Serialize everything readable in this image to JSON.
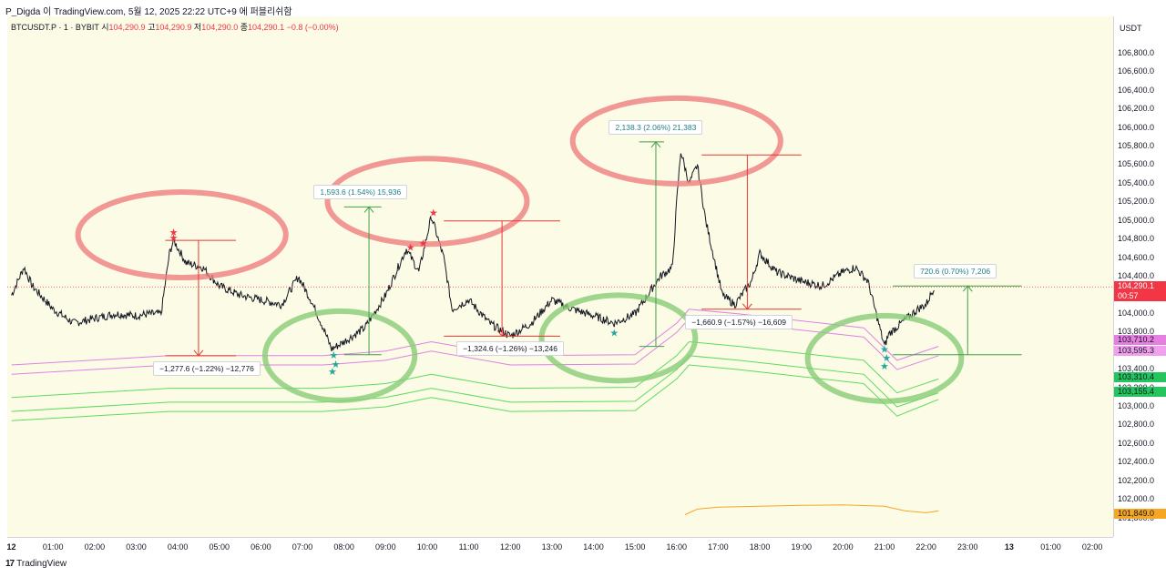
{
  "header": {
    "top_text": "P_Digda 이 TradingView.com, 5월 12, 2025 22:22 UTC+9 에 퍼블리쉬함",
    "symbol": "BTCUSDT.P · 1 · BYBIT",
    "o_label": "시",
    "o_value": "104,290.9",
    "h_label": "고",
    "h_value": "104,290.9",
    "l_label": "저",
    "l_value": "104,290.0",
    "c_label": "종",
    "c_value": "104,290.1",
    "change": "−0.8 (−0.00%)"
  },
  "footer": {
    "logo": "17",
    "brand": "TradingView"
  },
  "colors": {
    "background": "#fbfbe6",
    "candle": "#131722",
    "bull_accent": "#26a69a",
    "band_pink": "#e080e8",
    "band_green": "#5ddc5d",
    "measure_up": "#43a047",
    "measure_down": "#e53935",
    "circle_red": "#f08080",
    "circle_green": "#88cc77",
    "orange": "#f5a623"
  },
  "chart_data": {
    "type": "line",
    "ylim": [
      101600,
      107200
    ],
    "currency": "USDT",
    "y_ticks": [
      "106,800.0",
      "106,600.0",
      "106,400.0",
      "106,200.0",
      "106,000.0",
      "105,800.0",
      "105,600.0",
      "105,400.0",
      "105,200.0",
      "105,000.0",
      "104,800.0",
      "104,600.0",
      "104,400.0",
      "104,000.0",
      "103,800.0",
      "103,400.0",
      "103,200.0",
      "103,000.0",
      "102,800.0",
      "102,600.0",
      "102,400.0",
      "102,200.0",
      "102,000.0",
      "101,800.0"
    ],
    "y_tick_values": [
      106800,
      106600,
      106400,
      106200,
      106000,
      105800,
      105600,
      105400,
      105200,
      105000,
      104800,
      104600,
      104400,
      104000,
      103800,
      103400,
      103200,
      103000,
      102800,
      102600,
      102400,
      102200,
      102000,
      101800
    ],
    "x_ticks": [
      "12",
      "01:00",
      "02:00",
      "03:00",
      "04:00",
      "05:00",
      "06:00",
      "07:00",
      "08:00",
      "09:00",
      "10:00",
      "11:00",
      "12:00",
      "13:00",
      "14:00",
      "15:00",
      "16:00",
      "17:00",
      "18:00",
      "19:00",
      "20:00",
      "21:00",
      "22:00",
      "23:00",
      "13",
      "01:00",
      "02:00"
    ],
    "x_tick_hours": [
      0,
      1,
      2,
      3,
      4,
      5,
      6,
      7,
      8,
      9,
      10,
      11,
      12,
      13,
      14,
      15,
      16,
      17,
      18,
      19,
      20,
      21,
      22,
      23,
      24,
      25,
      26
    ],
    "x_range_hours": [
      -0.1,
      26.5
    ],
    "price_anchors": [
      [
        0.0,
        104200
      ],
      [
        0.3,
        104500
      ],
      [
        0.5,
        104300
      ],
      [
        1.0,
        104050
      ],
      [
        1.5,
        103900
      ],
      [
        2.0,
        103950
      ],
      [
        2.5,
        104000
      ],
      [
        3.0,
        103980
      ],
      [
        3.3,
        104000
      ],
      [
        3.6,
        104000
      ],
      [
        3.8,
        104650
      ],
      [
        3.9,
        104790
      ],
      [
        4.2,
        104550
      ],
      [
        4.6,
        104500
      ],
      [
        5.0,
        104300
      ],
      [
        5.5,
        104200
      ],
      [
        6.0,
        104150
      ],
      [
        6.5,
        104100
      ],
      [
        6.9,
        104400
      ],
      [
        7.2,
        104150
      ],
      [
        7.5,
        103850
      ],
      [
        7.7,
        103620
      ],
      [
        8.0,
        103700
      ],
      [
        8.5,
        103850
      ],
      [
        9.0,
        104200
      ],
      [
        9.5,
        104700
      ],
      [
        9.8,
        104450
      ],
      [
        10.1,
        105050
      ],
      [
        10.4,
        104600
      ],
      [
        10.6,
        104050
      ],
      [
        11.0,
        104150
      ],
      [
        11.5,
        103900
      ],
      [
        12.0,
        103760
      ],
      [
        12.5,
        103900
      ],
      [
        13.0,
        104150
      ],
      [
        13.5,
        104050
      ],
      [
        14.0,
        103980
      ],
      [
        14.5,
        103900
      ],
      [
        15.0,
        104000
      ],
      [
        15.3,
        104200
      ],
      [
        15.6,
        104400
      ],
      [
        15.9,
        104500
      ],
      [
        16.0,
        105200
      ],
      [
        16.1,
        105750
      ],
      [
        16.3,
        105400
      ],
      [
        16.5,
        105600
      ],
      [
        16.7,
        105000
      ],
      [
        16.9,
        104600
      ],
      [
        17.1,
        104200
      ],
      [
        17.4,
        104100
      ],
      [
        17.8,
        104350
      ],
      [
        18.0,
        104650
      ],
      [
        18.4,
        104450
      ],
      [
        19.0,
        104350
      ],
      [
        19.5,
        104300
      ],
      [
        20.0,
        104450
      ],
      [
        20.3,
        104500
      ],
      [
        20.6,
        104350
      ],
      [
        21.0,
        103650
      ],
      [
        21.1,
        103780
      ],
      [
        21.4,
        103900
      ],
      [
        21.8,
        104050
      ],
      [
        22.0,
        104100
      ],
      [
        22.2,
        104290
      ]
    ],
    "lines": [
      {
        "name": "",
        "color": "#e080e8",
        "points": [
          [
            0,
            103450
          ],
          [
            3.8,
            103550
          ],
          [
            7.5,
            103550
          ],
          [
            9.0,
            103600
          ],
          [
            10.1,
            103700
          ],
          [
            12.0,
            103550
          ],
          [
            15.0,
            103560
          ],
          [
            16.0,
            103900
          ],
          [
            16.3,
            104050
          ],
          [
            17.5,
            104000
          ],
          [
            18.5,
            103950
          ],
          [
            20.5,
            103850
          ],
          [
            21.3,
            103500
          ],
          [
            22.3,
            103650
          ]
        ]
      },
      {
        "name": "",
        "color": "#e080e8",
        "points": [
          [
            0,
            103350
          ],
          [
            3.8,
            103450
          ],
          [
            7.5,
            103450
          ],
          [
            9.0,
            103500
          ],
          [
            10.1,
            103600
          ],
          [
            12.0,
            103450
          ],
          [
            15.0,
            103460
          ],
          [
            16.0,
            103800
          ],
          [
            16.3,
            103950
          ],
          [
            17.5,
            103900
          ],
          [
            18.5,
            103850
          ],
          [
            20.5,
            103750
          ],
          [
            21.3,
            103400
          ],
          [
            22.3,
            103550
          ]
        ]
      },
      {
        "name": "",
        "color": "#5ddc5d",
        "points": [
          [
            0,
            103100
          ],
          [
            3.8,
            103200
          ],
          [
            7.5,
            103200
          ],
          [
            9.0,
            103250
          ],
          [
            10.1,
            103350
          ],
          [
            12.0,
            103200
          ],
          [
            15.0,
            103210
          ],
          [
            16.0,
            103550
          ],
          [
            16.3,
            103700
          ],
          [
            17.5,
            103650
          ],
          [
            18.5,
            103600
          ],
          [
            20.5,
            103500
          ],
          [
            21.3,
            103150
          ],
          [
            22.3,
            103300
          ]
        ]
      },
      {
        "name": "",
        "color": "#5ddc5d",
        "points": [
          [
            0,
            102950
          ],
          [
            3.8,
            103050
          ],
          [
            7.5,
            103050
          ],
          [
            9.0,
            103100
          ],
          [
            10.1,
            103200
          ],
          [
            12.0,
            103050
          ],
          [
            15.0,
            103060
          ],
          [
            16.0,
            103400
          ],
          [
            16.3,
            103550
          ],
          [
            17.5,
            103500
          ],
          [
            18.5,
            103450
          ],
          [
            20.5,
            103350
          ],
          [
            21.3,
            103000
          ],
          [
            22.3,
            103150
          ]
        ]
      },
      {
        "name": "",
        "color": "#5ddc5d",
        "points": [
          [
            0,
            102850
          ],
          [
            3.8,
            102950
          ],
          [
            7.5,
            102950
          ],
          [
            9.0,
            103000
          ],
          [
            10.1,
            103100
          ],
          [
            12.0,
            102950
          ],
          [
            15.0,
            102960
          ],
          [
            16.0,
            103300
          ],
          [
            16.3,
            103450
          ],
          [
            17.5,
            103400
          ],
          [
            18.5,
            103350
          ],
          [
            20.5,
            103250
          ],
          [
            21.3,
            102900
          ],
          [
            22.3,
            103080
          ]
        ]
      },
      {
        "name": "",
        "color": "#f5a623",
        "points": [
          [
            16.2,
            101840
          ],
          [
            16.5,
            101900
          ],
          [
            17.0,
            101920
          ],
          [
            18.0,
            101930
          ],
          [
            19.0,
            101940
          ],
          [
            20.0,
            101945
          ],
          [
            21.0,
            101930
          ],
          [
            21.5,
            101880
          ],
          [
            22.0,
            101860
          ],
          [
            22.3,
            101880
          ]
        ]
      }
    ],
    "measurements": [
      {
        "direction": "down",
        "x1": 3.7,
        "x2": 5.4,
        "arrow_x": 4.5,
        "top": 104790,
        "bottom": 103550,
        "label": "−1,277.6 (−1.22%) −12,776",
        "label_x": 4.7
      },
      {
        "direction": "up",
        "x1": 8.0,
        "x2": 8.9,
        "arrow_x": 8.6,
        "top": 105150,
        "bottom": 103560,
        "label": "1,593.6 (1.54%) 15,936",
        "label_x": 8.4
      },
      {
        "direction": "down",
        "x1": 10.4,
        "x2": 13.2,
        "arrow_x": 11.8,
        "top": 105000,
        "bottom": 103760,
        "label": "−1,324.6 (−1.26%) −13,246",
        "label_x": 12.0
      },
      {
        "direction": "up",
        "x1": 15.1,
        "x2": 15.7,
        "arrow_x": 15.5,
        "top": 105850,
        "bottom": 103650,
        "label": "2,138.3 (2.06%) 21,383",
        "label_x": 15.5
      },
      {
        "direction": "down",
        "x1": 16.6,
        "x2": 19.0,
        "arrow_x": 17.7,
        "top": 105710,
        "bottom": 104050,
        "label": "−1,660.9 (−1.57%) −16,609",
        "label_x": 17.5
      },
      {
        "direction": "up",
        "x1": 21.2,
        "x2": 24.3,
        "arrow_x": 23.0,
        "top": 104300,
        "bottom": 103560,
        "label": "720.6 (0.70%) 7,206",
        "label_x": 22.7
      }
    ],
    "circles": [
      {
        "color": "#f08080",
        "x": 4.1,
        "y": 104850,
        "rx": 2.5,
        "ry": 460
      },
      {
        "color": "#f08080",
        "x": 10.0,
        "y": 105210,
        "rx": 2.4,
        "ry": 460
      },
      {
        "color": "#f08080",
        "x": 16.0,
        "y": 105860,
        "rx": 2.5,
        "ry": 460
      },
      {
        "color": "#88cc77",
        "x": 7.9,
        "y": 103550,
        "rx": 1.8,
        "ry": 480
      },
      {
        "color": "#88cc77",
        "x": 14.6,
        "y": 103740,
        "rx": 1.85,
        "ry": 460
      },
      {
        "color": "#88cc77",
        "x": 21.0,
        "y": 103520,
        "rx": 1.85,
        "ry": 460
      }
    ],
    "stars": [
      {
        "color": "#f23645",
        "x": 3.9,
        "y": 104880
      },
      {
        "color": "#f23645",
        "x": 3.9,
        "y": 104820
      },
      {
        "color": "#f23645",
        "x": 9.6,
        "y": 104720
      },
      {
        "color": "#f23645",
        "x": 9.9,
        "y": 104760
      },
      {
        "color": "#f23645",
        "x": 10.15,
        "y": 105090
      },
      {
        "color": "#26a69a",
        "x": 7.75,
        "y": 103560
      },
      {
        "color": "#26a69a",
        "x": 7.8,
        "y": 103460
      },
      {
        "color": "#26a69a",
        "x": 7.72,
        "y": 103380
      },
      {
        "color": "#26a69a",
        "x": 14.5,
        "y": 103800
      },
      {
        "color": "#26a69a",
        "x": 21.0,
        "y": 103620
      },
      {
        "color": "#26a69a",
        "x": 21.05,
        "y": 103530
      },
      {
        "color": "#26a69a",
        "x": 21.0,
        "y": 103440
      }
    ],
    "last_price": 104290.1,
    "price_badges": [
      {
        "value": "104,290.1",
        "sub": "00:57",
        "price": 104290,
        "bg": "#f23645",
        "fg": "#ffffff"
      },
      {
        "value": "103,710.2",
        "price": 103710,
        "bg": "#e57fe0",
        "fg": "#131722"
      },
      {
        "value": "103,595.3",
        "price": 103595,
        "bg": "#f0a0ec",
        "fg": "#131722"
      },
      {
        "value": "103,310.4",
        "price": 103310,
        "bg": "#22c55e",
        "fg": "#131722"
      },
      {
        "value": "103,155.4",
        "price": 103155,
        "bg": "#22c55e",
        "fg": "#131722"
      },
      {
        "value": "101,849.0",
        "price": 101849,
        "bg": "#f5a623",
        "fg": "#131722"
      }
    ]
  }
}
